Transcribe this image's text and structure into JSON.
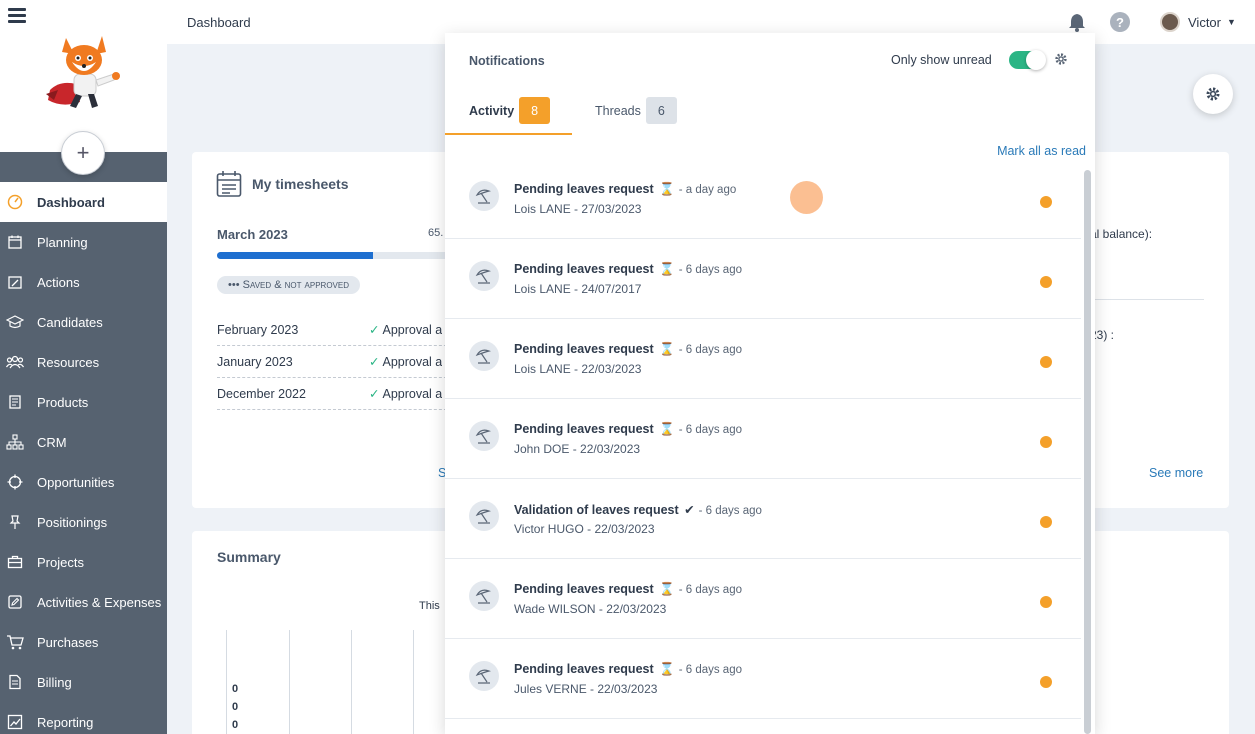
{
  "topbar": {
    "page_title": "Dashboard",
    "user_name": "Victor",
    "help_label": "?"
  },
  "sidebar": {
    "add_label": "+",
    "items": [
      {
        "label": "Dashboard",
        "icon": "gauge-icon",
        "active": true
      },
      {
        "label": "Planning",
        "icon": "calendar-icon"
      },
      {
        "label": "Actions",
        "icon": "edit-calendar-icon"
      },
      {
        "label": "Candidates",
        "icon": "graduation-cap-icon"
      },
      {
        "label": "Resources",
        "icon": "people-icon"
      },
      {
        "label": "Products",
        "icon": "book-icon"
      },
      {
        "label": "CRM",
        "icon": "org-chart-icon"
      },
      {
        "label": "Opportunities",
        "icon": "crosshair-icon"
      },
      {
        "label": "Positionings",
        "icon": "pin-icon"
      },
      {
        "label": "Projects",
        "icon": "briefcase-icon"
      },
      {
        "label": "Activities & Expenses",
        "icon": "pencil-square-icon"
      },
      {
        "label": "Purchases",
        "icon": "cart-icon"
      },
      {
        "label": "Billing",
        "icon": "invoice-icon"
      },
      {
        "label": "Reporting",
        "icon": "chart-icon"
      }
    ]
  },
  "timesheets": {
    "title": "My timesheets",
    "current_month": "March 2023",
    "current_pct": "65.",
    "progress": 0.65,
    "badge": "••• Saved & not approved",
    "rows": [
      {
        "month": "February 2023",
        "status": "Approval a"
      },
      {
        "month": "January 2023",
        "status": "Approval a"
      },
      {
        "month": "December 2022",
        "status": "Approval a"
      }
    ],
    "see_fragment": "S",
    "right_fragment_1": "al balance):",
    "right_fragment_2": "23) :",
    "see_more": "See more"
  },
  "summary": {
    "title": "Summary",
    "this_fragment": "This",
    "zeros": [
      "0",
      "0",
      "0"
    ]
  },
  "notifications": {
    "title": "Notifications",
    "only_unread_label": "Only show unread",
    "only_unread_on": true,
    "tabs": [
      {
        "label": "Activity",
        "count": "8"
      },
      {
        "label": "Threads",
        "count": "6"
      }
    ],
    "mark_all_read": "Mark all as read",
    "items": [
      {
        "title": "Pending leaves request",
        "glyph": "⌛",
        "ago": "- a day ago",
        "subtitle": "Lois LANE - 27/03/2023"
      },
      {
        "title": "Pending leaves request",
        "glyph": "⌛",
        "ago": "- 6 days ago",
        "subtitle": "Lois LANE - 24/07/2017"
      },
      {
        "title": "Pending leaves request",
        "glyph": "⌛",
        "ago": "- 6 days ago",
        "subtitle": "Lois LANE - 22/03/2023"
      },
      {
        "title": "Pending leaves request",
        "glyph": "⌛",
        "ago": "- 6 days ago",
        "subtitle": "John DOE - 22/03/2023"
      },
      {
        "title": "Validation of leaves request",
        "glyph": "✔",
        "ago": "- 6 days ago",
        "subtitle": "Victor HUGO - 22/03/2023"
      },
      {
        "title": "Pending leaves request",
        "glyph": "⌛",
        "ago": "- 6 days ago",
        "subtitle": "Wade WILSON - 22/03/2023"
      },
      {
        "title": "Pending leaves request",
        "glyph": "⌛",
        "ago": "- 6 days ago",
        "subtitle": "Jules VERNE - 22/03/2023"
      }
    ]
  },
  "colors": {
    "accent": "#f4a02a",
    "toggle": "#2bb585",
    "sidebar": "#566270",
    "link": "#2a7ab8",
    "progress": "#1e6fd0"
  }
}
